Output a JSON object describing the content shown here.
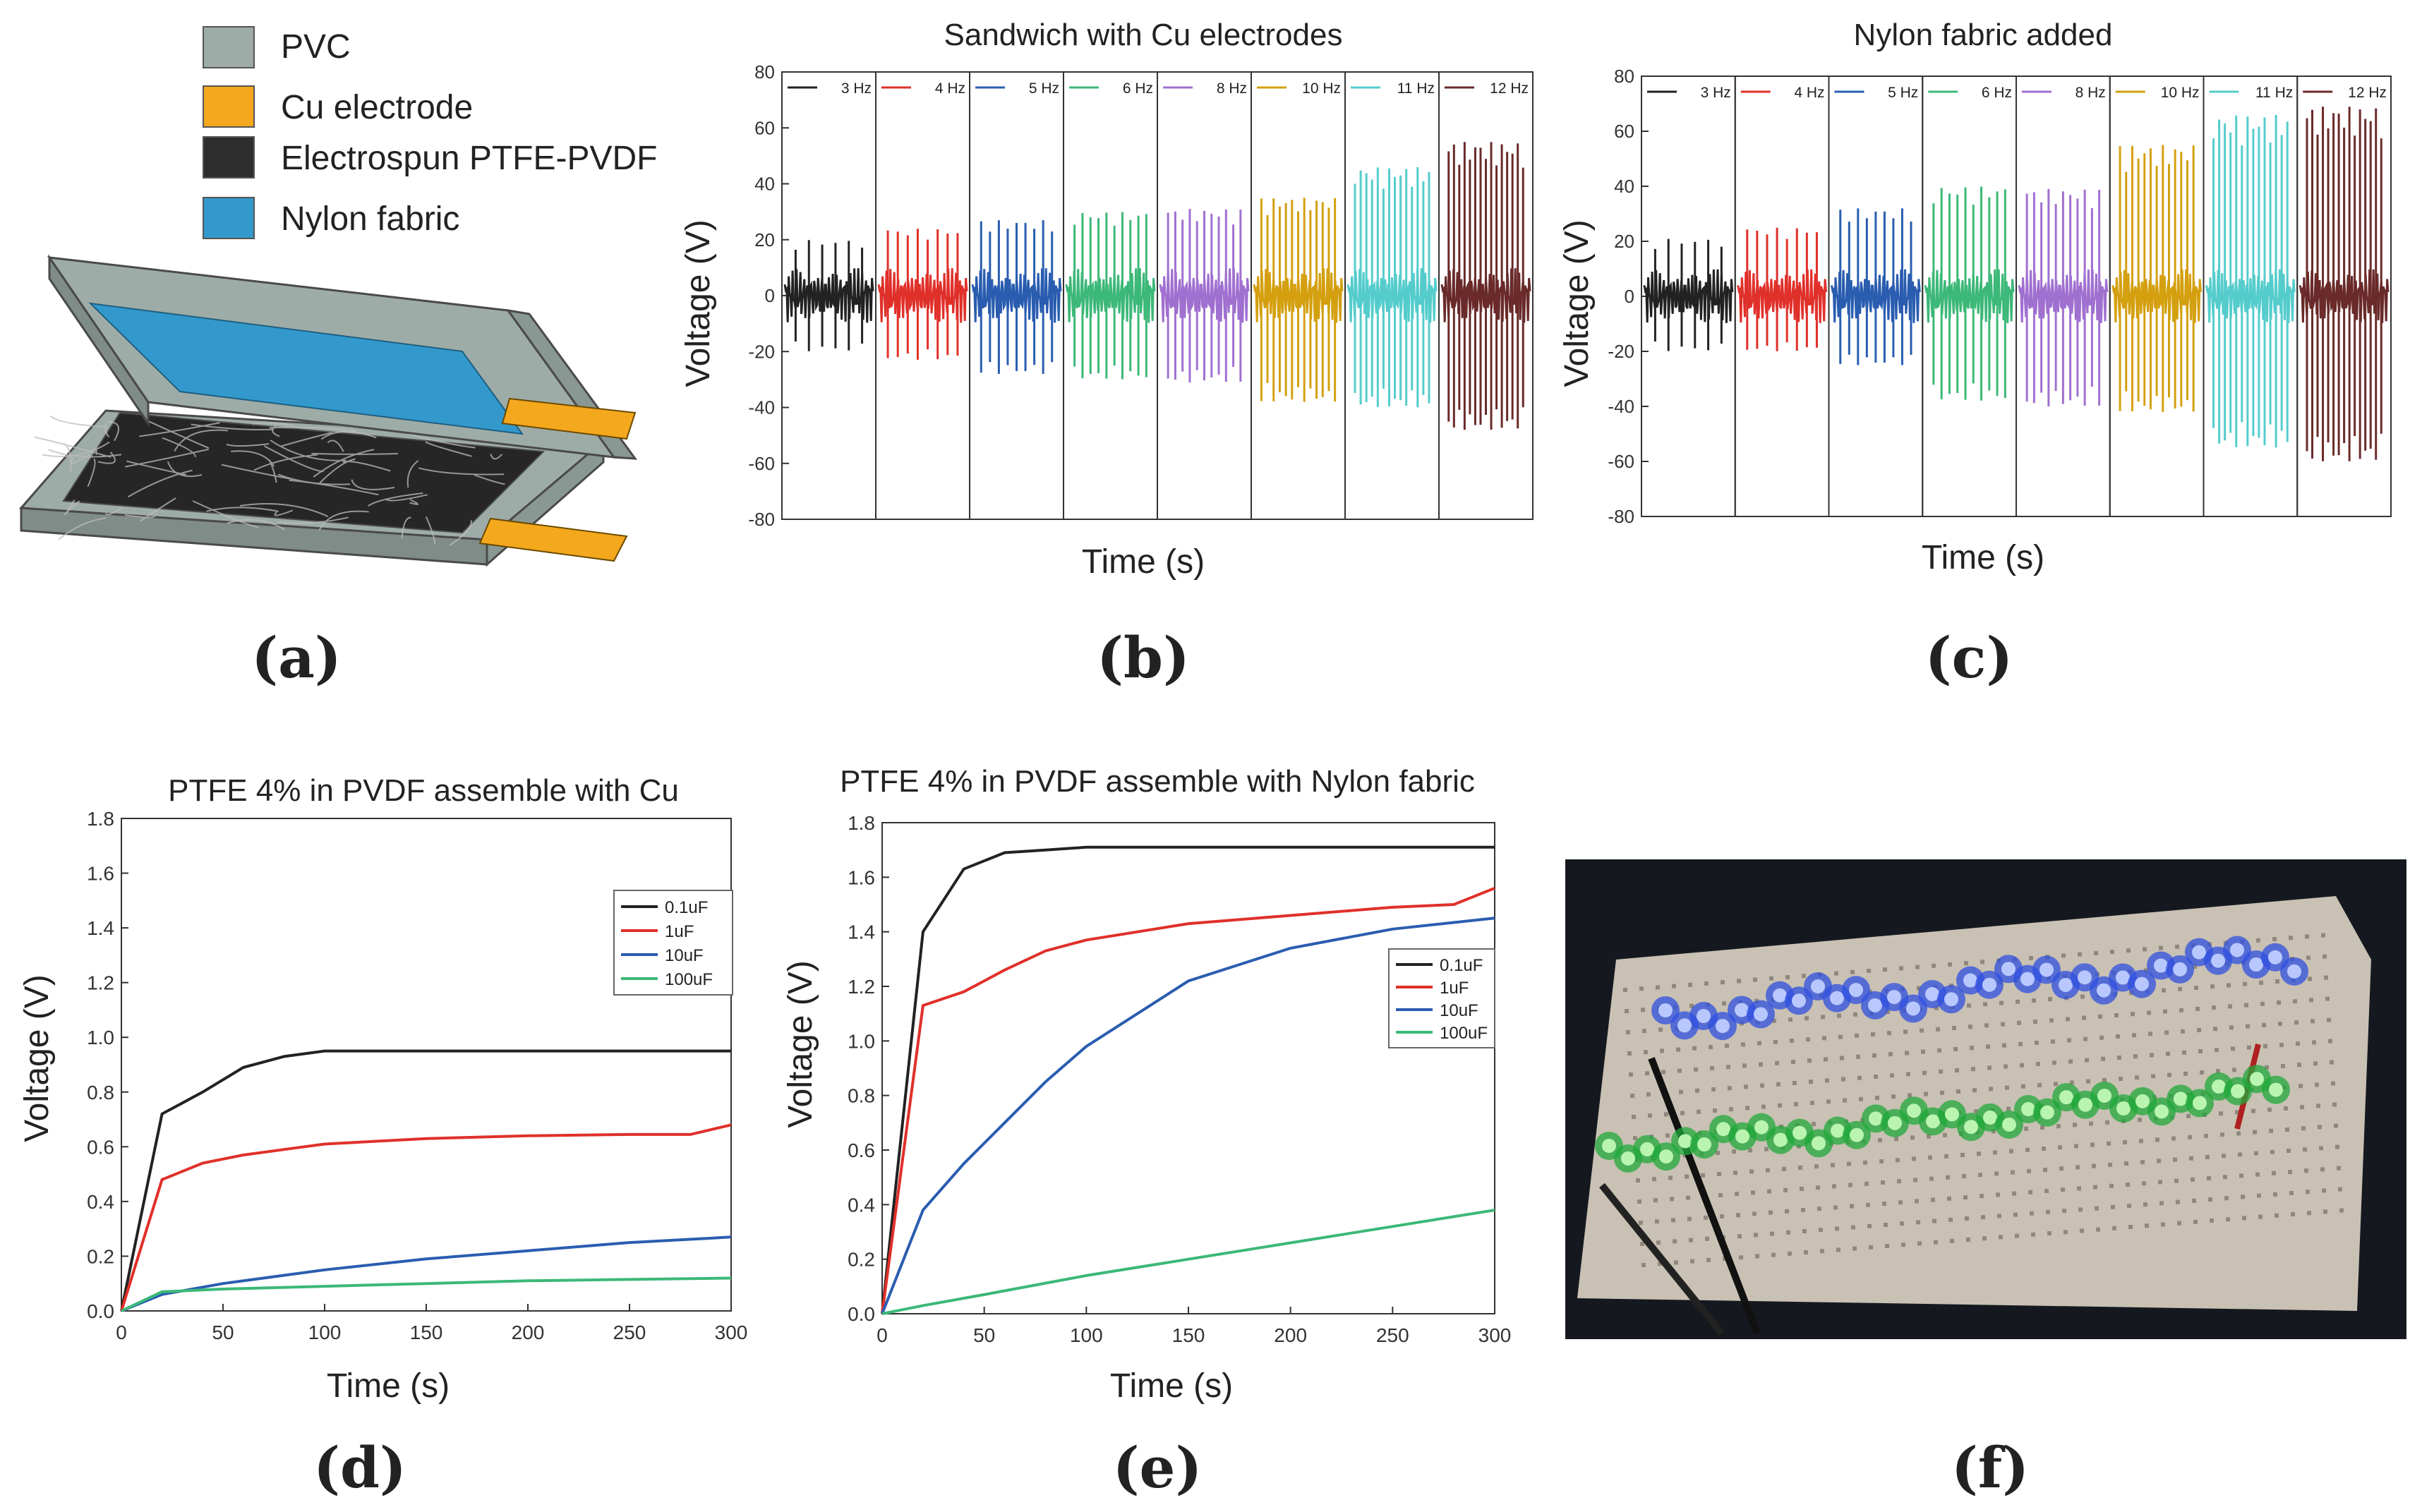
{
  "panel_labels": {
    "a": "(a)",
    "b": "(b)",
    "c": "(c)",
    "d": "(d)",
    "e": "(e)",
    "f": "(f)"
  },
  "colors": {
    "pvc": "#9eaca8",
    "cu": "#f4a81d",
    "nylon": "#3399cc",
    "ptfe": "#2a2a2a"
  },
  "legend_a": {
    "pvc": "PVC",
    "cu": "Cu electrode",
    "ptfe": "Electrospun PTFE-PVDF",
    "nylon": "Nylon fabric"
  },
  "chart_data": [
    {
      "id": "b",
      "type": "line",
      "title": "Sandwich with Cu electrodes",
      "xlabel": "Time (s)",
      "ylabel": "Voltage (V)",
      "ylim": [
        -80,
        80
      ],
      "yticks": [
        80,
        60,
        40,
        20,
        0,
        -20,
        -40,
        -60,
        -80
      ],
      "series": [
        {
          "name": "3 Hz",
          "color": "#222222",
          "pos": 20,
          "neg": -20,
          "peaks": 6
        },
        {
          "name": "4 Hz",
          "color": "#e0302a",
          "pos": 24,
          "neg": -23,
          "peaks": 8
        },
        {
          "name": "5 Hz",
          "color": "#2a5db0",
          "pos": 27,
          "neg": -28,
          "peaks": 9
        },
        {
          "name": "6 Hz",
          "color": "#3cb878",
          "pos": 30,
          "neg": -30,
          "peaks": 10
        },
        {
          "name": "8 Hz",
          "color": "#a070d0",
          "pos": 31,
          "neg": -31,
          "peaks": 11
        },
        {
          "name": "10 Hz",
          "color": "#d4a010",
          "pos": 35,
          "neg": -38,
          "peaks": 13
        },
        {
          "name": "11 Hz",
          "color": "#55cccc",
          "pos": 46,
          "neg": -40,
          "peaks": 14
        },
        {
          "name": "12 Hz",
          "color": "#6a2a2a",
          "pos": 55,
          "neg": -48,
          "peaks": 15
        }
      ]
    },
    {
      "id": "c",
      "type": "line",
      "title": "Nylon fabric added",
      "xlabel": "Time (s)",
      "ylabel": "Voltage (V)",
      "ylim": [
        -80,
        80
      ],
      "yticks": [
        80,
        60,
        40,
        20,
        0,
        -20,
        -40,
        -60,
        -80
      ],
      "series": [
        {
          "name": "3 Hz",
          "color": "#222222",
          "pos": 21,
          "neg": -20,
          "peaks": 6
        },
        {
          "name": "4 Hz",
          "color": "#e0302a",
          "pos": 25,
          "neg": -20,
          "peaks": 8
        },
        {
          "name": "5 Hz",
          "color": "#2a5db0",
          "pos": 32,
          "neg": -25,
          "peaks": 9
        },
        {
          "name": "6 Hz",
          "color": "#3cb878",
          "pos": 40,
          "neg": -38,
          "peaks": 10
        },
        {
          "name": "8 Hz",
          "color": "#a070d0",
          "pos": 39,
          "neg": -40,
          "peaks": 11
        },
        {
          "name": "10 Hz",
          "color": "#d4a010",
          "pos": 55,
          "neg": -42,
          "peaks": 13
        },
        {
          "name": "11 Hz",
          "color": "#55cccc",
          "pos": 66,
          "neg": -55,
          "peaks": 14
        },
        {
          "name": "12 Hz",
          "color": "#6a2a2a",
          "pos": 69,
          "neg": -60,
          "peaks": 15
        }
      ]
    },
    {
      "id": "d",
      "type": "line",
      "title": "PTFE 4% in PVDF assemble with Cu",
      "xlabel": "Time (s)",
      "ylabel": "Voltage (V)",
      "xlim": [
        0,
        300
      ],
      "ylim": [
        0,
        1.8
      ],
      "xticks": [
        0,
        50,
        100,
        150,
        200,
        250,
        300
      ],
      "yticks": [
        "0.0",
        "0.2",
        "0.4",
        "0.6",
        "0.8",
        "1.0",
        "1.2",
        "1.4",
        "1.6",
        "1.8"
      ],
      "legend_position": "right",
      "series": [
        {
          "name": "0.1uF",
          "color": "#222222",
          "x": [
            0,
            20,
            40,
            60,
            80,
            100,
            150,
            200,
            250,
            300
          ],
          "y": [
            0.0,
            0.72,
            0.8,
            0.89,
            0.93,
            0.95,
            0.95,
            0.95,
            0.95,
            0.95
          ]
        },
        {
          "name": "1uF",
          "color": "#e0302a",
          "x": [
            0,
            20,
            40,
            60,
            80,
            100,
            150,
            200,
            250,
            280,
            300
          ],
          "y": [
            0.0,
            0.48,
            0.54,
            0.57,
            0.59,
            0.61,
            0.63,
            0.64,
            0.645,
            0.645,
            0.68
          ]
        },
        {
          "name": "10uF",
          "color": "#2a5db0",
          "x": [
            0,
            20,
            50,
            100,
            150,
            200,
            250,
            300
          ],
          "y": [
            0.0,
            0.06,
            0.1,
            0.15,
            0.19,
            0.22,
            0.25,
            0.27
          ]
        },
        {
          "name": "100uF",
          "color": "#3cb878",
          "x": [
            0,
            20,
            50,
            100,
            150,
            200,
            250,
            300
          ],
          "y": [
            0.0,
            0.07,
            0.08,
            0.09,
            0.1,
            0.11,
            0.115,
            0.12
          ]
        }
      ]
    },
    {
      "id": "e",
      "type": "line",
      "title": "PTFE 4% in PVDF assemble with Nylon fabric",
      "xlabel": "Time (s)",
      "ylabel": "Voltage (V)",
      "xlim": [
        0,
        300
      ],
      "ylim": [
        0,
        1.8
      ],
      "xticks": [
        0,
        50,
        100,
        150,
        200,
        250,
        300
      ],
      "yticks": [
        "0.0",
        "0.2",
        "0.4",
        "0.6",
        "0.8",
        "1.0",
        "1.2",
        "1.4",
        "1.6",
        "1.8"
      ],
      "legend_position": "right",
      "series": [
        {
          "name": "0.1uF",
          "color": "#222222",
          "x": [
            0,
            20,
            40,
            60,
            80,
            100,
            150,
            200,
            250,
            300
          ],
          "y": [
            0.0,
            1.4,
            1.63,
            1.69,
            1.7,
            1.71,
            1.71,
            1.71,
            1.71,
            1.71
          ]
        },
        {
          "name": "1uF",
          "color": "#e0302a",
          "x": [
            0,
            20,
            40,
            60,
            80,
            100,
            150,
            200,
            250,
            280,
            300
          ],
          "y": [
            0.0,
            1.13,
            1.18,
            1.26,
            1.33,
            1.37,
            1.43,
            1.46,
            1.49,
            1.5,
            1.56
          ]
        },
        {
          "name": "10uF",
          "color": "#2a5db0",
          "x": [
            0,
            20,
            40,
            60,
            80,
            100,
            150,
            200,
            250,
            300
          ],
          "y": [
            0.0,
            0.38,
            0.55,
            0.7,
            0.85,
            0.98,
            1.22,
            1.34,
            1.41,
            1.45
          ]
        },
        {
          "name": "100uF",
          "color": "#3cb878",
          "x": [
            0,
            20,
            50,
            100,
            150,
            200,
            250,
            300
          ],
          "y": [
            0.0,
            0.03,
            0.07,
            0.14,
            0.2,
            0.26,
            0.32,
            0.38
          ]
        }
      ]
    }
  ]
}
